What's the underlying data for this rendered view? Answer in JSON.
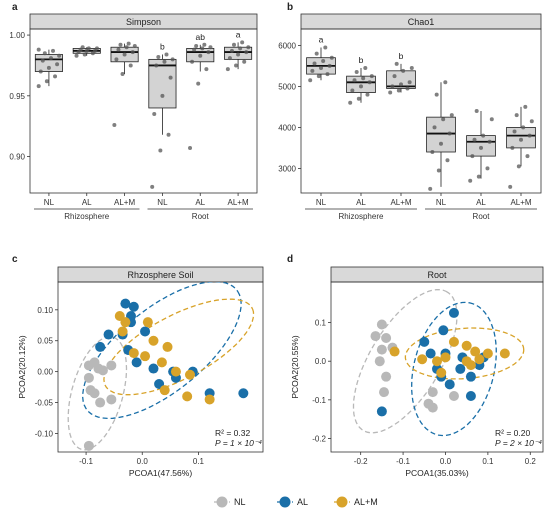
{
  "colors": {
    "NL": "#b8b8b8",
    "AL": "#1a6fa8",
    "AL+M": "#d8a32a",
    "box_fill": "#d3d3d3",
    "strip_fill": "#d9d9d9",
    "point_gray": "#555555"
  },
  "legend": {
    "entries": [
      {
        "label": "NL",
        "color": "#b8b8b8"
      },
      {
        "label": "AL",
        "color": "#1a6fa8"
      },
      {
        "label": "AL+M",
        "color": "#d8a32a"
      }
    ]
  },
  "chart_data": [
    {
      "panel": "a",
      "type": "box",
      "title": "Simpson",
      "ylim": [
        0.87,
        1.005
      ],
      "yticks": [
        "0.90",
        "0.95",
        "1.00"
      ],
      "ytick_values": [
        0.9,
        0.95,
        1.0
      ],
      "categories": [
        "NL",
        "AL",
        "AL+M",
        "NL",
        "AL",
        "AL+M"
      ],
      "groups": [
        {
          "label": "Rhizosphere",
          "span": [
            0,
            2
          ]
        },
        {
          "label": "Root",
          "span": [
            3,
            5
          ]
        }
      ],
      "boxes": [
        {
          "q1": 0.97,
          "median": 0.98,
          "q3": 0.984,
          "wlo": 0.958,
          "whi": 0.988,
          "sig": "",
          "points": [
            0.958,
            0.962,
            0.966,
            0.97,
            0.973,
            0.976,
            0.979,
            0.981,
            0.983,
            0.985,
            0.987,
            0.988
          ]
        },
        {
          "q1": 0.985,
          "median": 0.987,
          "q3": 0.989,
          "wlo": 0.983,
          "whi": 0.99,
          "sig": "",
          "points": [
            0.983,
            0.984,
            0.985,
            0.986,
            0.987,
            0.987,
            0.988,
            0.989,
            0.989,
            0.99
          ]
        },
        {
          "q1": 0.978,
          "median": 0.986,
          "q3": 0.99,
          "wlo": 0.968,
          "whi": 0.993,
          "sig": "",
          "points": [
            0.926,
            0.968,
            0.975,
            0.98,
            0.984,
            0.986,
            0.988,
            0.99,
            0.991,
            0.992,
            0.993
          ]
        },
        {
          "q1": 0.94,
          "median": 0.975,
          "q3": 0.98,
          "wlo": 0.918,
          "whi": 0.984,
          "sig": "b",
          "points": [
            0.875,
            0.905,
            0.918,
            0.935,
            0.95,
            0.965,
            0.975,
            0.978,
            0.98,
            0.982,
            0.984
          ]
        },
        {
          "q1": 0.978,
          "median": 0.986,
          "q3": 0.989,
          "wlo": 0.97,
          "whi": 0.992,
          "sig": "ab",
          "points": [
            0.907,
            0.96,
            0.972,
            0.978,
            0.983,
            0.986,
            0.988,
            0.989,
            0.99,
            0.991,
            0.992
          ]
        },
        {
          "q1": 0.98,
          "median": 0.986,
          "q3": 0.99,
          "wlo": 0.972,
          "whi": 0.994,
          "sig": "a",
          "points": [
            0.972,
            0.975,
            0.978,
            0.981,
            0.984,
            0.986,
            0.987,
            0.989,
            0.99,
            0.992,
            0.994
          ]
        }
      ]
    },
    {
      "panel": "b",
      "type": "box",
      "title": "Chao1",
      "ylim": [
        2400,
        6400
      ],
      "yticks": [
        "3000",
        "4000",
        "5000",
        "6000"
      ],
      "ytick_values": [
        3000,
        4000,
        5000,
        6000
      ],
      "categories": [
        "NL",
        "AL",
        "AL+M",
        "NL",
        "AL",
        "AL+M"
      ],
      "groups": [
        {
          "label": "Rhizosphere",
          "span": [
            0,
            2
          ]
        },
        {
          "label": "Root",
          "span": [
            3,
            5
          ]
        }
      ],
      "boxes": [
        {
          "q1": 5300,
          "median": 5500,
          "q3": 5700,
          "wlo": 5150,
          "whi": 5950,
          "sig": "a",
          "points": [
            5150,
            5250,
            5300,
            5380,
            5450,
            5500,
            5560,
            5620,
            5700,
            5800,
            5950
          ]
        },
        {
          "q1": 4850,
          "median": 5100,
          "q3": 5250,
          "wlo": 4600,
          "whi": 5450,
          "sig": "b",
          "points": [
            4600,
            4700,
            4800,
            4900,
            5000,
            5100,
            5150,
            5200,
            5250,
            5350,
            5450
          ]
        },
        {
          "q1": 4950,
          "median": 5000,
          "q3": 5380,
          "wlo": 4850,
          "whi": 5550,
          "sig": "b",
          "points": [
            4850,
            4900,
            4950,
            5000,
            5050,
            5100,
            5250,
            5380,
            5450,
            5550
          ]
        },
        {
          "q1": 3400,
          "median": 3850,
          "q3": 4250,
          "wlo": 2550,
          "whi": 5100,
          "sig": "",
          "points": [
            2500,
            2950,
            3200,
            3400,
            3600,
            3850,
            4000,
            4200,
            4300,
            4800,
            5100
          ]
        },
        {
          "q1": 3300,
          "median": 3650,
          "q3": 3800,
          "wlo": 2750,
          "whi": 4400,
          "sig": "",
          "points": [
            2700,
            2800,
            3000,
            3300,
            3500,
            3650,
            3700,
            3800,
            4200,
            4400
          ]
        },
        {
          "q1": 3500,
          "median": 3800,
          "q3": 4000,
          "wlo": 3050,
          "whi": 4500,
          "sig": "",
          "points": [
            2550,
            3050,
            3300,
            3500,
            3700,
            3800,
            3900,
            4000,
            4150,
            4300,
            4500
          ]
        }
      ]
    },
    {
      "panel": "c",
      "type": "scatter",
      "title": "Rhzosphere Soil",
      "xlabel": "PCOA1(47.56%)",
      "ylabel": "PCOA2(20.12%)",
      "xlim": [
        -0.15,
        0.215
      ],
      "ylim": [
        -0.13,
        0.145
      ],
      "xticks": [
        -0.1,
        0.0,
        0.1
      ],
      "xtick_labels": [
        "-0.1",
        "0.0",
        "0.1"
      ],
      "yticks": [
        -0.1,
        -0.05,
        0.0,
        0.05,
        0.1
      ],
      "ytick_labels": [
        "-0.10",
        "-0.05",
        "0.00",
        "0.05",
        "0.10"
      ],
      "stat_r2": "R² = 0.32",
      "stat_p": "P = 1 × 10⁻⁴",
      "series": [
        {
          "name": "NL",
          "points": [
            [
              -0.095,
              0.01
            ],
            [
              -0.085,
              0.015
            ],
            [
              -0.078,
              0.005
            ],
            [
              -0.07,
              0.002
            ],
            [
              -0.055,
              0.01
            ],
            [
              -0.095,
              -0.01
            ],
            [
              -0.092,
              -0.03
            ],
            [
              -0.085,
              -0.035
            ],
            [
              -0.075,
              -0.05
            ],
            [
              -0.055,
              -0.045
            ],
            [
              -0.095,
              -0.12
            ]
          ]
        },
        {
          "name": "AL",
          "points": [
            [
              -0.03,
              0.11
            ],
            [
              -0.02,
              0.09
            ],
            [
              -0.015,
              0.105
            ],
            [
              -0.02,
              0.08
            ],
            [
              -0.06,
              0.06
            ],
            [
              -0.075,
              0.04
            ],
            [
              -0.035,
              0.06
            ],
            [
              0.005,
              0.065
            ],
            [
              -0.025,
              0.035
            ],
            [
              -0.01,
              0.015
            ],
            [
              0.02,
              0.005
            ],
            [
              0.055,
              0.0
            ],
            [
              0.09,
              0.0
            ],
            [
              0.06,
              -0.01
            ],
            [
              0.03,
              -0.02
            ],
            [
              0.12,
              -0.035
            ],
            [
              0.18,
              -0.035
            ]
          ]
        },
        {
          "name": "AL+M",
          "points": [
            [
              -0.04,
              0.09
            ],
            [
              -0.03,
              0.08
            ],
            [
              0.01,
              0.08
            ],
            [
              -0.035,
              0.065
            ],
            [
              0.02,
              0.05
            ],
            [
              -0.015,
              0.03
            ],
            [
              0.005,
              0.025
            ],
            [
              0.045,
              0.04
            ],
            [
              0.035,
              0.015
            ],
            [
              0.06,
              0.0
            ],
            [
              0.085,
              -0.005
            ],
            [
              0.04,
              -0.03
            ],
            [
              0.08,
              -0.04
            ],
            [
              0.12,
              -0.045
            ]
          ]
        }
      ],
      "ellipses": [
        {
          "series": "NL",
          "cx": -0.08,
          "cy": -0.035,
          "rx": 0.095,
          "ry": 0.045,
          "angle_deg": -72
        },
        {
          "series": "AL",
          "cx": 0.035,
          "cy": 0.035,
          "rx": 0.165,
          "ry": 0.07,
          "angle_deg": -35
        },
        {
          "series": "AL+M",
          "cx": 0.065,
          "cy": 0.04,
          "rx": 0.145,
          "ry": 0.052,
          "angle_deg": -25
        }
      ]
    },
    {
      "panel": "d",
      "type": "scatter",
      "title": "Root",
      "xlabel": "PCOA1(35.03%)",
      "ylabel": "PCOA2(20.55%)",
      "xlim": [
        -0.27,
        0.23
      ],
      "ylim": [
        -0.235,
        0.205
      ],
      "xticks": [
        -0.2,
        -0.1,
        0.0,
        0.1,
        0.2
      ],
      "xtick_labels": [
        "-0.2",
        "-0.1",
        "0.0",
        "0.1",
        "0.2"
      ],
      "yticks": [
        -0.2,
        -0.1,
        0.0,
        0.1
      ],
      "ytick_labels": [
        "-0.2",
        "-0.1",
        "0.0",
        "0.1"
      ],
      "stat_r2": "R² = 0.20",
      "stat_p": "P = 2 × 10⁻⁴",
      "series": [
        {
          "name": "NL",
          "points": [
            [
              -0.15,
              0.095
            ],
            [
              -0.165,
              0.065
            ],
            [
              -0.14,
              0.06
            ],
            [
              -0.15,
              0.03
            ],
            [
              -0.125,
              0.035
            ],
            [
              -0.155,
              0.0
            ],
            [
              -0.14,
              -0.04
            ],
            [
              -0.03,
              -0.08
            ],
            [
              -0.03,
              -0.12
            ],
            [
              0.02,
              -0.09
            ],
            [
              -0.145,
              -0.08
            ],
            [
              -0.04,
              -0.11
            ]
          ]
        },
        {
          "name": "AL",
          "points": [
            [
              0.02,
              0.125
            ],
            [
              -0.005,
              0.08
            ],
            [
              -0.05,
              0.05
            ],
            [
              -0.035,
              0.02
            ],
            [
              0.0,
              0.02
            ],
            [
              0.04,
              0.01
            ],
            [
              0.08,
              -0.01
            ],
            [
              0.09,
              0.01
            ],
            [
              0.035,
              -0.02
            ],
            [
              -0.02,
              -0.02
            ],
            [
              -0.01,
              -0.04
            ],
            [
              0.01,
              -0.06
            ],
            [
              0.06,
              -0.04
            ],
            [
              -0.15,
              -0.13
            ],
            [
              0.06,
              -0.09
            ]
          ]
        },
        {
          "name": "AL+M",
          "points": [
            [
              -0.12,
              0.025
            ],
            [
              -0.055,
              0.005
            ],
            [
              0.02,
              0.05
            ],
            [
              0.05,
              0.04
            ],
            [
              0.07,
              0.025
            ],
            [
              0.1,
              0.02
            ],
            [
              0.14,
              0.02
            ],
            [
              0.0,
              0.01
            ],
            [
              -0.02,
              0.0
            ],
            [
              0.05,
              0.0
            ],
            [
              -0.01,
              -0.03
            ],
            [
              0.08,
              0.005
            ],
            [
              0.06,
              -0.01
            ]
          ]
        }
      ],
      "ellipses": [
        {
          "series": "NL",
          "cx": -0.095,
          "cy": 0.0,
          "rx": 0.205,
          "ry": 0.085,
          "angle_deg": -62
        },
        {
          "series": "AL",
          "cx": 0.02,
          "cy": -0.02,
          "rx": 0.175,
          "ry": 0.095,
          "angle_deg": -78
        },
        {
          "series": "AL+M",
          "cx": 0.045,
          "cy": 0.02,
          "rx": 0.14,
          "ry": 0.065,
          "angle_deg": -5
        }
      ]
    }
  ]
}
